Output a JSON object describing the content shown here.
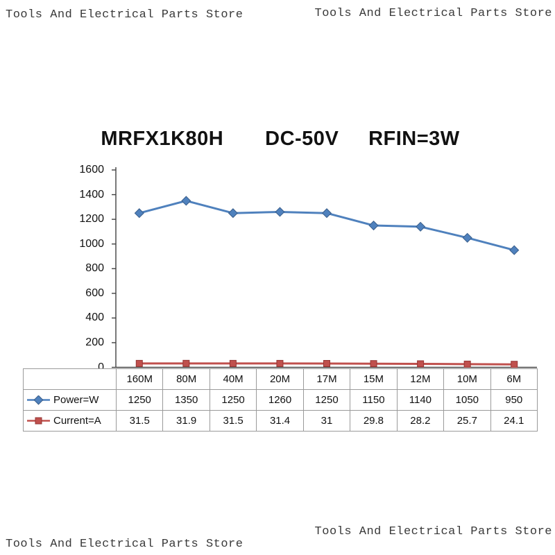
{
  "watermark": {
    "text": "Tools And Electrical Parts Store"
  },
  "chart": {
    "title": "MRFX1K80H       DC-50V     RFIN=3W"
  },
  "chart_data": {
    "type": "line",
    "title": "MRFX1K80H DC-50V RFIN=3W",
    "categories": [
      "160M",
      "80M",
      "40M",
      "20M",
      "17M",
      "15M",
      "12M",
      "10M",
      "6M"
    ],
    "series": [
      {
        "name": "Power=W",
        "values": [
          1250,
          1350,
          1250,
          1260,
          1250,
          1150,
          1140,
          1050,
          950
        ],
        "color": "#4f81bd",
        "edge": "#385d8a",
        "marker": "diamond"
      },
      {
        "name": "Current=A",
        "values": [
          31.5,
          31.9,
          31.5,
          31.4,
          31,
          29.8,
          28.2,
          25.7,
          24.1
        ],
        "color": "#c0504d",
        "edge": "#943634",
        "marker": "square"
      }
    ],
    "xlabel": "",
    "ylabel": "",
    "ylim": [
      0,
      1600
    ],
    "yticks": [
      0,
      200,
      400,
      600,
      800,
      1000,
      1200,
      1400,
      1600
    ],
    "grid": false,
    "legend_position": "table-left"
  }
}
